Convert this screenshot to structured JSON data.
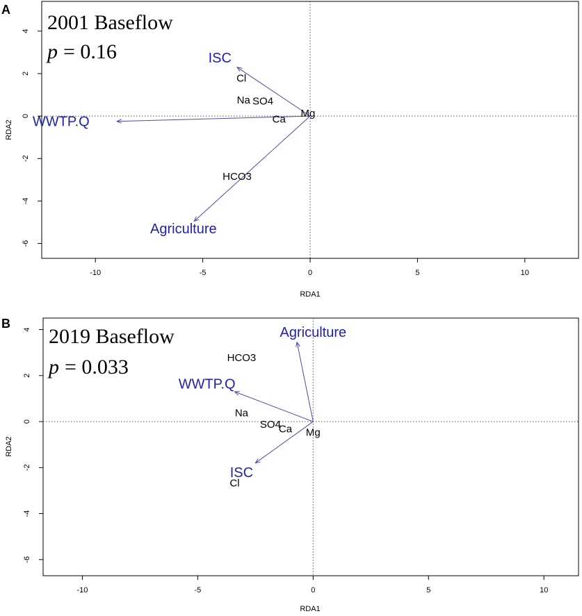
{
  "colors": {
    "arrow": "#4a4aa8",
    "variable_label": "#1f1fb4",
    "species_label": "#000000"
  },
  "panels": [
    {
      "letter": "A",
      "title": "2001 Baseflow",
      "p_symbol": "p",
      "p_value": "= 0.16"
    },
    {
      "letter": "B",
      "title": "2019 Baseflow",
      "p_symbol": "p",
      "p_value": "= 0.033"
    }
  ],
  "chart_data": [
    {
      "type": "scatter",
      "subtype": "RDA biplot",
      "title": "2001 Baseflow",
      "annotation": "p = 0.16",
      "xlabel": "RDA1",
      "ylabel": "RDA2",
      "xlim": [
        -12.5,
        12.5
      ],
      "ylim": [
        -6.7,
        5.4
      ],
      "xticks": [
        -10,
        -5,
        0,
        5,
        10
      ],
      "yticks": [
        -6,
        -4,
        -2,
        0,
        2,
        4
      ],
      "xtick_labels": [
        "-10",
        "-5",
        "0",
        "5",
        "10"
      ],
      "ytick_labels": [
        "-6",
        "-4",
        "-2",
        "0",
        "2",
        "4"
      ],
      "reference_lines": {
        "x": 0,
        "y": 0,
        "style": "dotted"
      },
      "arrows": [
        {
          "name": "ISC",
          "x": -3.4,
          "y": 2.3,
          "label_x": -4.2,
          "label_y": 2.7
        },
        {
          "name": "WWTP.Q",
          "x": -9.0,
          "y": -0.25,
          "label_x": -11.6,
          "label_y": -0.3
        },
        {
          "name": "Agriculture",
          "x": -5.4,
          "y": -4.95,
          "label_x": -5.9,
          "label_y": -5.35
        }
      ],
      "points": [
        {
          "name": "Cl",
          "x": -3.2,
          "y": 1.75
        },
        {
          "name": "Na",
          "x": -3.1,
          "y": 0.72
        },
        {
          "name": "SO4",
          "x": -2.2,
          "y": 0.68
        },
        {
          "name": "Mg",
          "x": -0.1,
          "y": 0.1
        },
        {
          "name": "Ca",
          "x": -1.45,
          "y": -0.18
        },
        {
          "name": "HCO3",
          "x": -3.4,
          "y": -2.87
        }
      ]
    },
    {
      "type": "scatter",
      "subtype": "RDA biplot",
      "title": "2019 Baseflow",
      "annotation": "p = 0.033",
      "xlabel": "RDA1",
      "ylabel": "RDA2",
      "xlim": [
        -11.7,
        11.5
      ],
      "ylim": [
        -6.7,
        4.5
      ],
      "xticks": [
        -10,
        -5,
        0,
        5,
        10
      ],
      "yticks": [
        -6,
        -4,
        -2,
        0,
        2,
        4
      ],
      "xtick_labels": [
        "-10",
        "-5",
        "0",
        "5",
        "10"
      ],
      "ytick_labels": [
        "-6",
        "-4",
        "-2",
        "0",
        "2",
        "4"
      ],
      "reference_lines": {
        "x": 0,
        "y": 0,
        "style": "dotted"
      },
      "arrows": [
        {
          "name": "Agriculture",
          "x": -0.7,
          "y": 3.45,
          "label_x": 0.0,
          "label_y": 3.85
        },
        {
          "name": "WWTP.Q",
          "x": -3.4,
          "y": 1.3,
          "label_x": -4.6,
          "label_y": 1.6
        },
        {
          "name": "ISC",
          "x": -2.5,
          "y": -1.8,
          "label_x": -3.1,
          "label_y": -2.25
        }
      ],
      "points": [
        {
          "name": "HCO3",
          "x": -3.1,
          "y": 2.75
        },
        {
          "name": "Na",
          "x": -3.1,
          "y": 0.35
        },
        {
          "name": "SO4",
          "x": -1.85,
          "y": -0.15
        },
        {
          "name": "Ca",
          "x": -1.2,
          "y": -0.35
        },
        {
          "name": "Mg",
          "x": 0.0,
          "y": -0.5
        },
        {
          "name": "Cl",
          "x": -3.4,
          "y": -2.7
        }
      ]
    }
  ]
}
